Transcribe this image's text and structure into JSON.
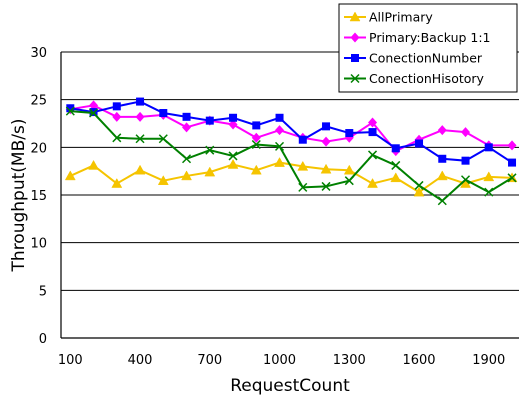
{
  "chart_data": {
    "type": "line",
    "title": "",
    "xlabel": "RequestCount",
    "ylabel": "Throughput(MB/s)",
    "x": [
      100,
      200,
      300,
      400,
      500,
      600,
      700,
      800,
      900,
      1000,
      1100,
      1200,
      1300,
      1400,
      1500,
      1600,
      1700,
      1800,
      1900,
      2000
    ],
    "xlim": [
      60,
      2030
    ],
    "ylim": [
      0,
      30
    ],
    "x_tick_labels": [
      "100",
      "400",
      "700",
      "1000",
      "1300",
      "1600",
      "1900"
    ],
    "x_tick_values": [
      100,
      400,
      700,
      1000,
      1300,
      1600,
      1900
    ],
    "y_tick_labels": [
      "0",
      "5",
      "10",
      "15",
      "20",
      "25",
      "30"
    ],
    "y_tick_values": [
      0,
      5,
      10,
      15,
      20,
      25,
      30
    ],
    "grid": "horizontal",
    "legend_position": "top-right",
    "series": [
      {
        "name": "AllPrimary",
        "color": "#f5c400",
        "marker": "triangle",
        "values": [
          17.0,
          18.1,
          16.2,
          17.6,
          16.5,
          17.0,
          17.4,
          18.2,
          17.6,
          18.4,
          18.0,
          17.7,
          17.6,
          16.2,
          16.8,
          15.3,
          17.0,
          16.2,
          16.9,
          16.8
        ]
      },
      {
        "name": "Primary:Backup 1:1",
        "color": "#ff00ff",
        "marker": "diamond",
        "values": [
          24.0,
          24.4,
          23.2,
          23.2,
          23.4,
          22.1,
          22.8,
          22.4,
          21.0,
          21.8,
          21.0,
          20.6,
          21.0,
          22.6,
          19.6,
          20.8,
          21.8,
          21.6,
          20.2,
          20.2
        ]
      },
      {
        "name": "ConectionNumber",
        "color": "#0000ff",
        "marker": "square",
        "values": [
          24.1,
          23.7,
          24.3,
          24.8,
          23.6,
          23.2,
          22.8,
          23.1,
          22.3,
          23.1,
          20.8,
          22.2,
          21.5,
          21.6,
          19.9,
          20.4,
          18.8,
          18.6,
          20.0,
          18.4
        ]
      },
      {
        "name": "ConectionHisotory",
        "color": "#008000",
        "marker": "x",
        "values": [
          23.8,
          23.6,
          21.0,
          20.9,
          20.9,
          18.8,
          19.7,
          19.1,
          20.3,
          20.1,
          15.8,
          15.9,
          16.5,
          19.2,
          18.1,
          16.0,
          14.4,
          16.6,
          15.3,
          16.8
        ]
      }
    ]
  }
}
